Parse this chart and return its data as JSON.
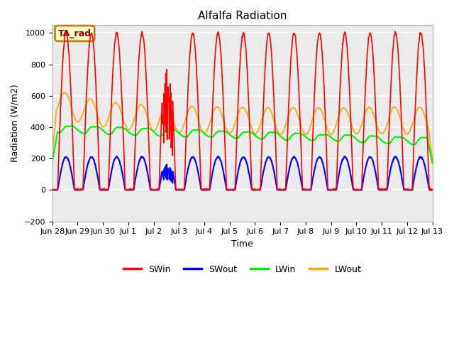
{
  "title": "Alfalfa Radiation",
  "xlabel": "Time",
  "ylabel": "Radiation (W/m2)",
  "ylim": [
    -200,
    1050
  ],
  "yticks": [
    -200,
    0,
    200,
    400,
    600,
    800,
    1000
  ],
  "plot_bg_color": "#ebebeb",
  "grid_color": "white",
  "series_colors": {
    "SWin": "red",
    "SWout": "blue",
    "LWin": "#00ee00",
    "LWout": "orange"
  },
  "tick_hours": [
    0,
    24,
    48,
    72,
    96,
    120,
    144,
    168,
    192,
    216,
    240,
    264,
    288,
    312,
    336,
    360
  ],
  "tick_labels": [
    "Jun 28",
    "Jun 29",
    "Jun 30",
    "Jul 1",
    "Jul 2",
    "Jul 3",
    "Jul 4",
    "Jul 5",
    "Jul 6",
    "Jul 7",
    "Jul 8",
    "Jul 9",
    "Jul 10",
    "Jul 11",
    "Jul 12",
    "Jul 13"
  ],
  "ta_rad_label": "TA_rad",
  "figsize": [
    6.4,
    4.8
  ],
  "dpi": 100
}
